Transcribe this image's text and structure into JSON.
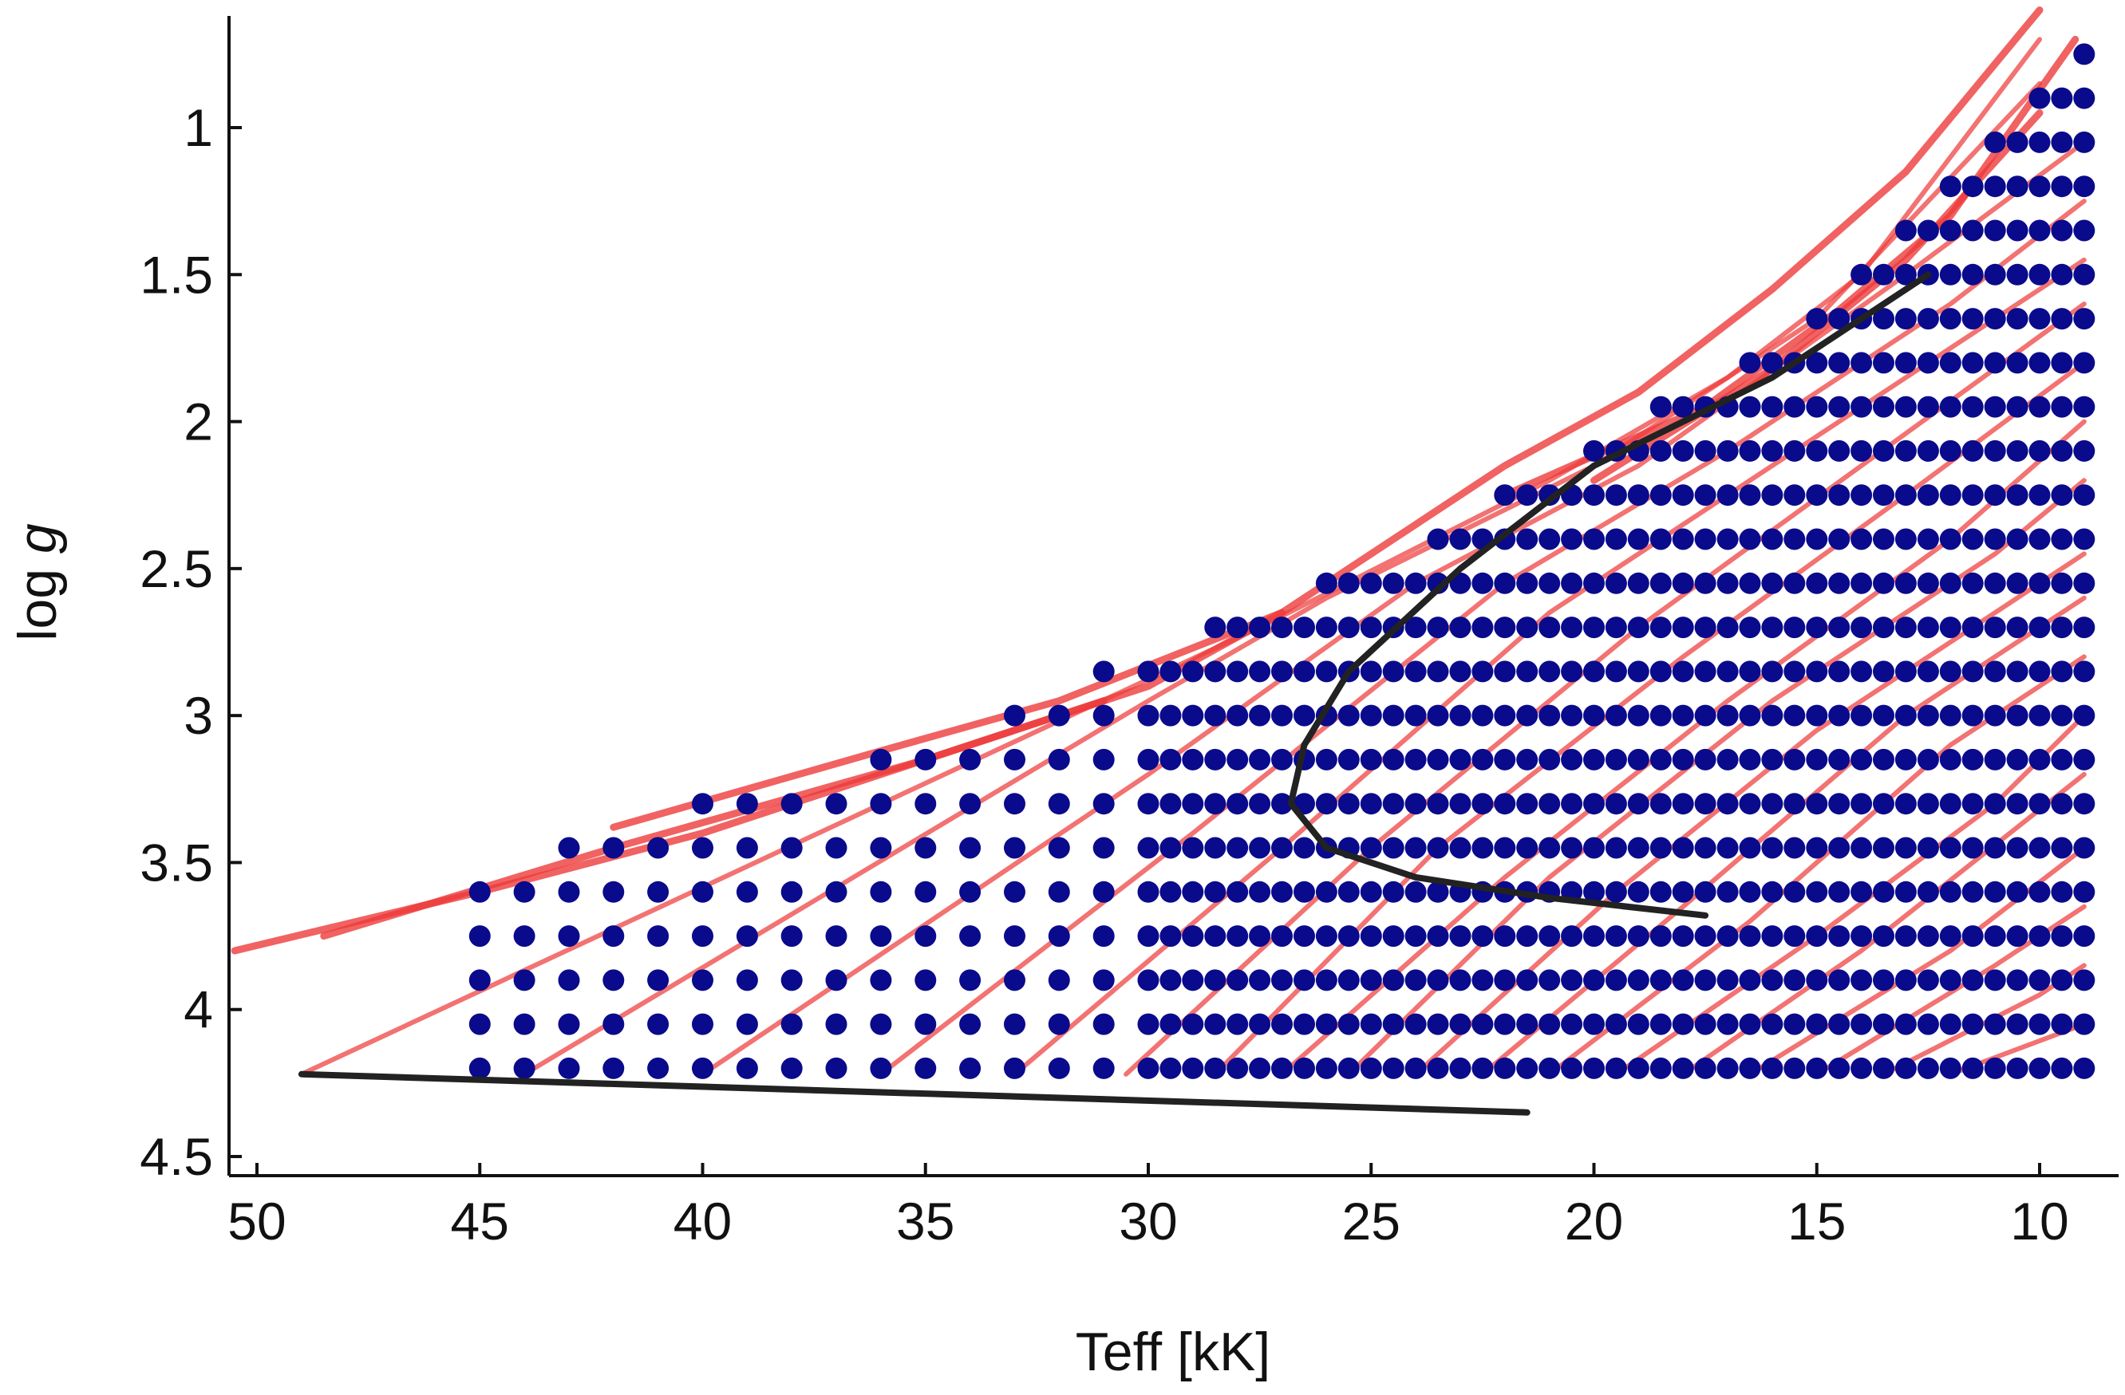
{
  "chart_data": {
    "type": "scatter",
    "title": "",
    "xlabel": "Teff [kK]",
    "ylabel_prefix": "log ",
    "ylabel_italic": "g",
    "x_reversed": true,
    "y_reversed": true,
    "xlim": [
      50.5,
      8.2
    ],
    "ylim": [
      0.62,
      4.6
    ],
    "x_ticks": [
      50,
      45,
      40,
      35,
      30,
      25,
      20,
      15,
      10
    ],
    "x_tick_labels": [
      "50",
      "45",
      "40",
      "35",
      "30",
      "25",
      "20",
      "15",
      "10"
    ],
    "y_ticks": [
      1,
      1.5,
      2,
      2.5,
      3,
      3.5,
      4,
      4.5
    ],
    "y_tick_labels": [
      "1",
      "1.5",
      "2",
      "2.5",
      "3",
      "3.5",
      "4",
      "4.5"
    ],
    "grid": false,
    "model_grid": {
      "description_color": "#0a0a8c",
      "coarse_teff_step": 1.0,
      "fine_teff_step": 0.5,
      "fine_below_teff": 30,
      "rows": [
        {
          "logg": 4.2,
          "teff_max": 45,
          "teff_min": 9
        },
        {
          "logg": 4.05,
          "teff_max": 45,
          "teff_min": 9
        },
        {
          "logg": 3.9,
          "teff_max": 45,
          "teff_min": 9
        },
        {
          "logg": 3.75,
          "teff_max": 45,
          "teff_min": 9
        },
        {
          "logg": 3.6,
          "teff_max": 45,
          "teff_min": 9
        },
        {
          "logg": 3.45,
          "teff_max": 43,
          "teff_min": 9
        },
        {
          "logg": 3.3,
          "teff_max": 40,
          "teff_min": 9
        },
        {
          "logg": 3.15,
          "teff_max": 36,
          "teff_min": 9
        },
        {
          "logg": 3.0,
          "teff_max": 33,
          "teff_min": 9
        },
        {
          "logg": 2.85,
          "teff_max": 31,
          "teff_min": 9
        },
        {
          "logg": 2.7,
          "teff_max": 28.5,
          "teff_min": 9
        },
        {
          "logg": 2.55,
          "teff_max": 26,
          "teff_min": 9
        },
        {
          "logg": 2.4,
          "teff_max": 23.5,
          "teff_min": 9
        },
        {
          "logg": 2.25,
          "teff_max": 22,
          "teff_min": 9
        },
        {
          "logg": 2.1,
          "teff_max": 20,
          "teff_min": 9
        },
        {
          "logg": 1.95,
          "teff_max": 18.5,
          "teff_min": 9
        },
        {
          "logg": 1.8,
          "teff_max": 16.5,
          "teff_min": 9
        },
        {
          "logg": 1.65,
          "teff_max": 15,
          "teff_min": 9
        },
        {
          "logg": 1.5,
          "teff_max": 14,
          "teff_min": 9
        },
        {
          "logg": 1.35,
          "teff_max": 13,
          "teff_min": 9
        },
        {
          "logg": 1.2,
          "teff_max": 12,
          "teff_min": 9
        },
        {
          "logg": 1.05,
          "teff_max": 11,
          "teff_min": 9
        },
        {
          "logg": 0.9,
          "teff_max": 10,
          "teff_min": 9
        },
        {
          "logg": 0.75,
          "teff_max": 9,
          "teff_min": 9
        }
      ]
    },
    "evolutionary_tracks": {
      "color": "#ee3b3b",
      "tracks": [
        [
          [
            49,
            4.22
          ],
          [
            27.5,
            2.7
          ],
          [
            21,
            2.2
          ],
          [
            17,
            1.85
          ],
          [
            14,
            1.5
          ],
          [
            10,
            0.7
          ]
        ],
        [
          [
            44,
            4.22
          ],
          [
            30,
            2.95
          ],
          [
            26,
            2.6
          ],
          [
            20,
            2.15
          ],
          [
            15,
            1.65
          ],
          [
            10,
            0.85
          ]
        ],
        [
          [
            40,
            4.22
          ],
          [
            30,
            3.2
          ],
          [
            24,
            2.55
          ],
          [
            19,
            2.15
          ],
          [
            13,
            1.5
          ],
          [
            9,
            1.05
          ]
        ],
        [
          [
            36,
            4.22
          ],
          [
            29,
            3.4
          ],
          [
            22,
            2.55
          ],
          [
            17,
            2.1
          ],
          [
            12,
            1.6
          ],
          [
            9,
            1.25
          ]
        ],
        [
          [
            33,
            4.22
          ],
          [
            27,
            3.45
          ],
          [
            21,
            2.65
          ],
          [
            15,
            2.05
          ],
          [
            9,
            1.45
          ]
        ],
        [
          [
            30.5,
            4.22
          ],
          [
            25,
            3.45
          ],
          [
            19,
            2.7
          ],
          [
            14,
            2.15
          ],
          [
            9,
            1.6
          ]
        ],
        [
          [
            28.5,
            4.22
          ],
          [
            23.5,
            3.45
          ],
          [
            18,
            2.8
          ],
          [
            13,
            2.25
          ],
          [
            9,
            1.8
          ]
        ],
        [
          [
            27,
            4.22
          ],
          [
            22,
            3.55
          ],
          [
            17,
            2.95
          ],
          [
            12,
            2.4
          ],
          [
            9,
            2.0
          ]
        ],
        [
          [
            25.5,
            4.22
          ],
          [
            21,
            3.55
          ],
          [
            16,
            2.95
          ],
          [
            11,
            2.45
          ],
          [
            9,
            2.2
          ]
        ],
        [
          [
            24,
            4.22
          ],
          [
            19.5,
            3.6
          ],
          [
            15,
            3.05
          ],
          [
            9,
            2.45
          ]
        ],
        [
          [
            22.5,
            4.22
          ],
          [
            18,
            3.65
          ],
          [
            13,
            3.0
          ],
          [
            9,
            2.6
          ]
        ],
        [
          [
            21,
            4.22
          ],
          [
            16.5,
            3.7
          ],
          [
            12,
            3.1
          ],
          [
            9,
            2.8
          ]
        ],
        [
          [
            19.5,
            4.22
          ],
          [
            15,
            3.75
          ],
          [
            11,
            3.3
          ],
          [
            9,
            3.0
          ]
        ],
        [
          [
            18,
            4.22
          ],
          [
            14,
            3.8
          ],
          [
            9,
            3.2
          ]
        ],
        [
          [
            16.5,
            4.22
          ],
          [
            12,
            3.8
          ],
          [
            9,
            3.45
          ]
        ],
        [
          [
            15,
            4.22
          ],
          [
            11,
            3.85
          ],
          [
            9,
            3.65
          ]
        ],
        [
          [
            13.5,
            4.22
          ],
          [
            10,
            3.95
          ],
          [
            9,
            3.85
          ]
        ],
        [
          [
            12,
            4.22
          ],
          [
            9,
            4.05
          ]
        ]
      ],
      "boundary": [
        [
          50.5,
          3.8
        ],
        [
          45,
          3.6
        ],
        [
          40,
          3.4
        ],
        [
          35,
          3.15
        ],
        [
          30,
          2.9
        ],
        [
          27,
          2.65
        ],
        [
          25,
          2.45
        ],
        [
          22,
          2.15
        ],
        [
          19,
          1.9
        ],
        [
          16,
          1.55
        ],
        [
          13,
          1.15
        ],
        [
          10,
          0.6
        ]
      ],
      "boundary_extra": [
        [
          [
            48.5,
            3.75
          ],
          [
            42,
            3.45
          ],
          [
            35,
            3.15
          ],
          [
            31,
            2.95
          ]
        ],
        [
          [
            42,
            3.38
          ],
          [
            36,
            3.12
          ],
          [
            32,
            2.95
          ],
          [
            27,
            2.65
          ]
        ],
        [
          [
            22,
            2.25
          ],
          [
            17.5,
            1.95
          ],
          [
            14.5,
            1.62
          ],
          [
            12,
            1.3
          ],
          [
            9.2,
            0.7
          ]
        ],
        [
          [
            20,
            2.2
          ],
          [
            16,
            1.82
          ],
          [
            13,
            1.45
          ],
          [
            10,
            0.95
          ]
        ]
      ]
    },
    "black_lines": [
      {
        "name": "lower-limit-line",
        "points": [
          [
            49,
            4.22
          ],
          [
            21.5,
            4.35
          ]
        ]
      },
      {
        "name": "tams-line",
        "points": [
          [
            12.5,
            1.5
          ],
          [
            16,
            1.85
          ],
          [
            20,
            2.15
          ],
          [
            23,
            2.5
          ],
          [
            25.5,
            2.85
          ],
          [
            26.5,
            3.1
          ],
          [
            26.8,
            3.3
          ],
          [
            26,
            3.45
          ],
          [
            24,
            3.55
          ],
          [
            21,
            3.62
          ],
          [
            17.5,
            3.68
          ]
        ]
      }
    ]
  }
}
